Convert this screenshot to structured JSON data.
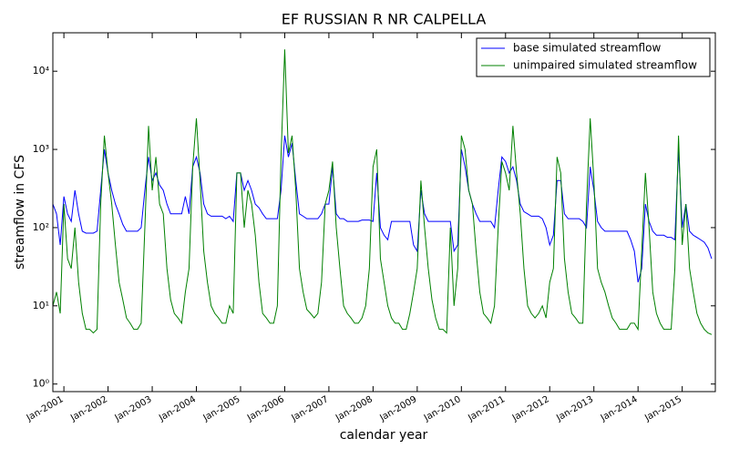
{
  "chart_data": {
    "type": "line",
    "title": "EF RUSSIAN R NR CALPELLA",
    "x_label": "calendar year",
    "y_label": "streamflow in CFS",
    "log_y": true,
    "legend": "upper right",
    "xlim": [
      "2000-10",
      "2015-10"
    ],
    "ylim": [
      0.8,
      31000
    ],
    "yticks": [
      {
        "value": 1,
        "label": "10⁰"
      },
      {
        "value": 10,
        "label": "10¹"
      },
      {
        "value": 100,
        "label": "10²"
      },
      {
        "value": 1000,
        "label": "10³"
      },
      {
        "value": 10000,
        "label": "10⁴"
      }
    ],
    "xticks": [
      {
        "value": "2001-01",
        "label": "Jan-2001"
      },
      {
        "value": "2002-01",
        "label": "Jan-2002"
      },
      {
        "value": "2003-01",
        "label": "Jan-2003"
      },
      {
        "value": "2004-01",
        "label": "Jan-2004"
      },
      {
        "value": "2005-01",
        "label": "Jan-2005"
      },
      {
        "value": "2006-01",
        "label": "Jan-2006"
      },
      {
        "value": "2007-01",
        "label": "Jan-2007"
      },
      {
        "value": "2008-01",
        "label": "Jan-2008"
      },
      {
        "value": "2009-01",
        "label": "Jan-2009"
      },
      {
        "value": "2010-01",
        "label": "Jan-2010"
      },
      {
        "value": "2011-01",
        "label": "Jan-2011"
      },
      {
        "value": "2012-01",
        "label": "Jan-2012"
      },
      {
        "value": "2013-01",
        "label": "Jan-2013"
      },
      {
        "value": "2014-01",
        "label": "Jan-2014"
      },
      {
        "value": "2015-01",
        "label": "Jan-2015"
      }
    ],
    "x": [
      "2000-10",
      "2000-11",
      "2000-12",
      "2001-01",
      "2001-02",
      "2001-03",
      "2001-04",
      "2001-05",
      "2001-06",
      "2001-07",
      "2001-08",
      "2001-09",
      "2001-10",
      "2001-11",
      "2001-12",
      "2002-01",
      "2002-02",
      "2002-03",
      "2002-04",
      "2002-05",
      "2002-06",
      "2002-07",
      "2002-08",
      "2002-09",
      "2002-10",
      "2002-11",
      "2002-12",
      "2003-01",
      "2003-02",
      "2003-03",
      "2003-04",
      "2003-05",
      "2003-06",
      "2003-07",
      "2003-08",
      "2003-09",
      "2003-10",
      "2003-11",
      "2003-12",
      "2004-01",
      "2004-02",
      "2004-03",
      "2004-04",
      "2004-05",
      "2004-06",
      "2004-07",
      "2004-08",
      "2004-09",
      "2004-10",
      "2004-11",
      "2004-12",
      "2005-01",
      "2005-02",
      "2005-03",
      "2005-04",
      "2005-05",
      "2005-06",
      "2005-07",
      "2005-08",
      "2005-09",
      "2005-10",
      "2005-11",
      "2005-12",
      "2006-01",
      "2006-02",
      "2006-03",
      "2006-04",
      "2006-05",
      "2006-06",
      "2006-07",
      "2006-08",
      "2006-09",
      "2006-10",
      "2006-11",
      "2006-12",
      "2007-01",
      "2007-02",
      "2007-03",
      "2007-04",
      "2007-05",
      "2007-06",
      "2007-07",
      "2007-08",
      "2007-09",
      "2007-10",
      "2007-11",
      "2007-12",
      "2008-01",
      "2008-02",
      "2008-03",
      "2008-04",
      "2008-05",
      "2008-06",
      "2008-07",
      "2008-08",
      "2008-09",
      "2008-10",
      "2008-11",
      "2008-12",
      "2009-01",
      "2009-02",
      "2009-03",
      "2009-04",
      "2009-05",
      "2009-06",
      "2009-07",
      "2009-08",
      "2009-09",
      "2009-10",
      "2009-11",
      "2009-12",
      "2010-01",
      "2010-02",
      "2010-03",
      "2010-04",
      "2010-05",
      "2010-06",
      "2010-07",
      "2010-08",
      "2010-09",
      "2010-10",
      "2010-11",
      "2010-12",
      "2011-01",
      "2011-02",
      "2011-03",
      "2011-04",
      "2011-05",
      "2011-06",
      "2011-07",
      "2011-08",
      "2011-09",
      "2011-10",
      "2011-11",
      "2011-12",
      "2012-01",
      "2012-02",
      "2012-03",
      "2012-04",
      "2012-05",
      "2012-06",
      "2012-07",
      "2012-08",
      "2012-09",
      "2012-10",
      "2012-11",
      "2012-12",
      "2013-01",
      "2013-02",
      "2013-03",
      "2013-04",
      "2013-05",
      "2013-06",
      "2013-07",
      "2013-08",
      "2013-09",
      "2013-10",
      "2013-11",
      "2013-12",
      "2014-01",
      "2014-02",
      "2014-03",
      "2014-04",
      "2014-05",
      "2014-06",
      "2014-07",
      "2014-08",
      "2014-09",
      "2014-10",
      "2014-11",
      "2014-12",
      "2015-01",
      "2015-02",
      "2015-03",
      "2015-04",
      "2015-05",
      "2015-06",
      "2015-07",
      "2015-08",
      "2015-09"
    ],
    "series": [
      {
        "name": "base simulated streamflow",
        "color": "#0000ff",
        "values": [
          200,
          150,
          60,
          250,
          150,
          120,
          300,
          150,
          90,
          85,
          85,
          85,
          90,
          300,
          1000,
          500,
          300,
          200,
          150,
          110,
          90,
          90,
          90,
          90,
          100,
          300,
          800,
          400,
          500,
          350,
          300,
          200,
          150,
          150,
          150,
          150,
          250,
          150,
          600,
          800,
          500,
          200,
          150,
          140,
          140,
          140,
          140,
          130,
          140,
          120,
          500,
          500,
          300,
          400,
          300,
          200,
          180,
          150,
          130,
          130,
          130,
          130,
          300,
          1500,
          800,
          1200,
          400,
          150,
          140,
          130,
          130,
          130,
          130,
          150,
          200,
          200,
          600,
          150,
          130,
          130,
          120,
          120,
          120,
          120,
          125,
          125,
          125,
          120,
          500,
          100,
          80,
          70,
          120,
          120,
          120,
          120,
          120,
          120,
          60,
          50,
          300,
          150,
          120,
          120,
          120,
          120,
          120,
          120,
          120,
          50,
          60,
          1000,
          600,
          300,
          200,
          150,
          120,
          120,
          120,
          120,
          100,
          300,
          800,
          700,
          500,
          600,
          400,
          200,
          160,
          150,
          140,
          140,
          140,
          130,
          100,
          60,
          80,
          400,
          400,
          150,
          130,
          130,
          130,
          130,
          120,
          100,
          600,
          300,
          120,
          100,
          90,
          90,
          90,
          90,
          90,
          90,
          90,
          70,
          50,
          20,
          30,
          200,
          120,
          90,
          80,
          80,
          80,
          75,
          75,
          70,
          1000,
          100,
          200,
          90,
          80,
          75,
          70,
          65,
          55,
          40
        ]
      },
      {
        "name": "unimpaired simulated streamflow",
        "color": "#008000",
        "values": [
          10,
          15,
          8,
          200,
          40,
          30,
          100,
          20,
          8,
          5,
          5,
          4.5,
          5,
          200,
          1500,
          500,
          200,
          60,
          20,
          12,
          7,
          6,
          5,
          5,
          6,
          100,
          2000,
          300,
          800,
          200,
          150,
          30,
          12,
          8,
          7,
          6,
          15,
          30,
          600,
          2500,
          400,
          50,
          20,
          10,
          8,
          7,
          6,
          6,
          10,
          8,
          500,
          500,
          100,
          300,
          200,
          80,
          20,
          8,
          7,
          6,
          6,
          10,
          800,
          19000,
          900,
          1500,
          300,
          30,
          15,
          9,
          8,
          7,
          8,
          20,
          200,
          300,
          700,
          100,
          30,
          10,
          8,
          7,
          6,
          6,
          7,
          10,
          30,
          600,
          1000,
          40,
          20,
          10,
          7,
          6,
          6,
          5,
          5,
          8,
          15,
          30,
          400,
          100,
          30,
          12,
          7,
          5,
          5,
          4.5,
          100,
          10,
          30,
          1500,
          1000,
          300,
          200,
          50,
          15,
          8,
          7,
          6,
          10,
          100,
          700,
          500,
          300,
          2000,
          500,
          150,
          30,
          10,
          8,
          7,
          8,
          10,
          7,
          20,
          30,
          800,
          500,
          40,
          15,
          8,
          7,
          6,
          6,
          200,
          2500,
          400,
          30,
          20,
          15,
          10,
          7,
          6,
          5,
          5,
          5,
          6,
          6,
          5,
          50,
          500,
          100,
          15,
          8,
          6,
          5,
          5,
          5,
          30,
          1500,
          60,
          200,
          30,
          15,
          8,
          6,
          5,
          4.5,
          4.3
        ]
      }
    ]
  }
}
